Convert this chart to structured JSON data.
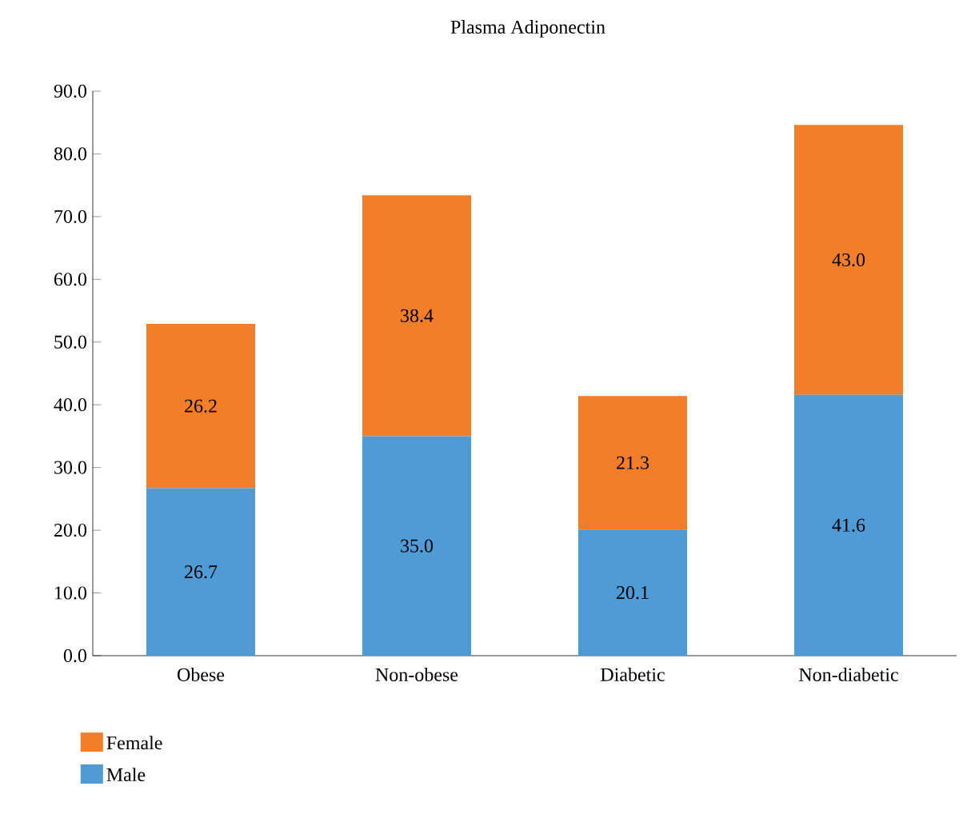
{
  "chart_data": {
    "type": "bar",
    "title": "Plasma Adiponectin",
    "stacked": true,
    "categories": [
      "Obese",
      "Non-obese",
      "Diabetic",
      "Non-diabetic"
    ],
    "series": [
      {
        "name": "Male",
        "color": "#4f9bd6",
        "values": [
          26.7,
          35.0,
          20.1,
          41.6
        ],
        "value_labels": [
          "26.7",
          "35.0",
          "20.1",
          "41.6"
        ]
      },
      {
        "name": "Female",
        "color": "#f37e29",
        "values": [
          26.2,
          38.4,
          21.3,
          43.0
        ],
        "value_labels": [
          "26.2",
          "38.4",
          "21.3",
          "43.0"
        ]
      }
    ],
    "ylim": [
      0,
      90
    ],
    "yticks": [
      {
        "value": 0,
        "label": "0.0"
      },
      {
        "value": 10,
        "label": "10.0"
      },
      {
        "value": 20,
        "label": "20.0"
      },
      {
        "value": 30,
        "label": "30.0"
      },
      {
        "value": 40,
        "label": "40.0"
      },
      {
        "value": 50,
        "label": "50.0"
      },
      {
        "value": 60,
        "label": "60.0"
      },
      {
        "value": 70,
        "label": "70.0"
      },
      {
        "value": 80,
        "label": "80.0"
      },
      {
        "value": 90,
        "label": "90.0"
      }
    ],
    "grid": false,
    "legend": "bottom left"
  }
}
